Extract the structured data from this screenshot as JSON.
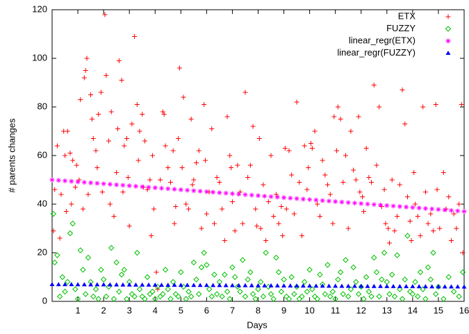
{
  "chart_data": {
    "type": "scatter",
    "x_label": "Days",
    "y_label": "# parents changes",
    "xlim": [
      0,
      16
    ],
    "ylim": [
      0,
      120
    ],
    "xticks": [
      1,
      2,
      3,
      4,
      5,
      6,
      7,
      8,
      9,
      10,
      11,
      12,
      13,
      14,
      15,
      16
    ],
    "yticks": [
      0,
      20,
      40,
      60,
      80,
      100,
      120
    ],
    "legend": "top-right",
    "series": [
      {
        "name": "ETX",
        "color": "#ff0000",
        "marker": "plus",
        "x": [
          0.05,
          0.1,
          0.2,
          0.3,
          0.35,
          0.45,
          0.5,
          0.55,
          0.6,
          0.7,
          0.75,
          0.8,
          0.9,
          0.95,
          1.05,
          1.1,
          1.2,
          1.25,
          1.3,
          1.35,
          1.4,
          1.5,
          1.55,
          1.6,
          1.7,
          1.75,
          1.8,
          1.9,
          1.95,
          2.05,
          2.1,
          2.2,
          2.25,
          2.3,
          2.4,
          2.5,
          2.55,
          2.6,
          2.7,
          2.75,
          2.8,
          2.9,
          2.95,
          3.0,
          3.1,
          3.2,
          3.3,
          3.35,
          3.4,
          3.5,
          3.55,
          3.6,
          3.7,
          3.8,
          3.85,
          3.9,
          3.95,
          4.05,
          4.1,
          4.2,
          4.3,
          4.35,
          4.4,
          4.5,
          4.6,
          4.7,
          4.75,
          4.8,
          4.9,
          4.95,
          5.05,
          5.1,
          5.2,
          5.3,
          5.4,
          5.45,
          5.5,
          5.6,
          5.7,
          5.8,
          5.9,
          5.95,
          6.0,
          6.1,
          6.2,
          6.3,
          6.4,
          6.5,
          6.6,
          6.7,
          6.8,
          6.9,
          6.95,
          7.0,
          7.1,
          7.2,
          7.3,
          7.4,
          7.5,
          7.6,
          7.7,
          7.8,
          7.9,
          7.95,
          8.05,
          8.1,
          8.2,
          8.3,
          8.4,
          8.5,
          8.6,
          8.7,
          8.8,
          8.9,
          8.95,
          9.05,
          9.1,
          9.2,
          9.3,
          9.4,
          9.5,
          9.6,
          9.7,
          9.8,
          9.9,
          9.95,
          10.05,
          10.1,
          10.2,
          10.3,
          10.4,
          10.5,
          10.6,
          10.7,
          10.8,
          10.9,
          10.95,
          11.05,
          11.1,
          11.2,
          11.3,
          11.4,
          11.5,
          11.6,
          11.7,
          11.8,
          11.9,
          11.95,
          12.05,
          12.1,
          12.2,
          12.3,
          12.4,
          12.5,
          12.6,
          12.7,
          12.8,
          12.9,
          12.95,
          13.05,
          13.1,
          13.2,
          13.3,
          13.4,
          13.5,
          13.6,
          13.7,
          13.8,
          13.9,
          13.95,
          14.05,
          14.1,
          14.2,
          14.3,
          14.4,
          14.5,
          14.6,
          14.7,
          14.8,
          14.9,
          14.95,
          15.05,
          15.2,
          15.3,
          15.4,
          15.5,
          15.6,
          15.7,
          15.8,
          15.9,
          15.95
        ],
        "values": [
          29,
          46,
          64,
          26,
          44,
          70,
          60,
          37,
          70,
          61,
          40,
          58,
          47,
          56,
          50,
          83,
          38,
          92,
          95,
          100,
          44,
          85,
          75,
          67,
          62,
          55,
          77,
          86,
          45,
          118,
          93,
          66,
          40,
          78,
          35,
          53,
          71,
          99,
          91,
          45,
          64,
          67,
          51,
          31,
          73,
          109,
          81,
          58,
          70,
          77,
          47,
          66,
          46,
          50,
          27,
          60,
          38,
          12,
          5,
          50,
          78,
          77,
          64,
          55,
          49,
          62,
          32,
          39,
          67,
          96,
          55,
          84,
          40,
          38,
          75,
          48,
          50,
          57,
          62,
          30,
          81,
          58,
          36,
          45,
          71,
          32,
          51,
          49,
          38,
          25,
          76,
          60,
          55,
          41,
          29,
          56,
          45,
          32,
          86,
          51,
          56,
          72,
          38,
          31,
          67,
          30,
          48,
          25,
          41,
          60,
          35,
          44,
          32,
          39,
          27,
          63,
          38,
          62,
          52,
          36,
          82,
          49,
          27,
          64,
          46,
          55,
          65,
          63,
          70,
          40,
          35,
          58,
          52,
          48,
          44,
          32,
          76,
          62,
          80,
          75,
          49,
          60,
          30,
          70,
          54,
          50,
          76,
          45,
          43,
          37,
          63,
          51,
          49,
          89,
          56,
          80,
          39,
          46,
          32,
          30,
          24,
          50,
          29,
          35,
          48,
          87,
          73,
          43,
          33,
          25,
          53,
          40,
          35,
          27,
          80,
          45,
          32,
          36,
          29,
          81,
          46,
          30,
          53,
          38,
          43,
          25,
          36,
          30,
          40,
          81,
          20
        ]
      },
      {
        "name": "FUZZY",
        "color": "#00c000",
        "marker": "diamond",
        "x": [
          0.05,
          0.1,
          0.2,
          0.3,
          0.4,
          0.5,
          0.6,
          0.7,
          0.8,
          0.9,
          1.0,
          1.1,
          1.2,
          1.3,
          1.4,
          1.5,
          1.6,
          1.7,
          1.8,
          1.9,
          2.0,
          2.1,
          2.2,
          2.3,
          2.4,
          2.5,
          2.6,
          2.7,
          2.8,
          2.9,
          3.0,
          3.1,
          3.2,
          3.3,
          3.4,
          3.5,
          3.6,
          3.7,
          3.8,
          3.9,
          4.0,
          4.1,
          4.2,
          4.3,
          4.4,
          4.5,
          4.6,
          4.7,
          4.8,
          4.9,
          5.0,
          5.1,
          5.2,
          5.3,
          5.4,
          5.5,
          5.6,
          5.7,
          5.8,
          5.9,
          6.0,
          6.1,
          6.2,
          6.3,
          6.4,
          6.5,
          6.6,
          6.7,
          6.8,
          6.9,
          7.0,
          7.1,
          7.2,
          7.3,
          7.4,
          7.5,
          7.6,
          7.7,
          7.8,
          7.9,
          8.0,
          8.1,
          8.2,
          8.3,
          8.4,
          8.5,
          8.6,
          8.7,
          8.8,
          8.9,
          9.0,
          9.1,
          9.2,
          9.3,
          9.4,
          9.5,
          9.6,
          9.7,
          9.8,
          9.9,
          10.0,
          10.1,
          10.2,
          10.3,
          10.4,
          10.5,
          10.6,
          10.7,
          10.8,
          10.9,
          11.0,
          11.1,
          11.2,
          11.3,
          11.4,
          11.5,
          11.6,
          11.7,
          11.8,
          11.9,
          12.0,
          12.1,
          12.2,
          12.3,
          12.4,
          12.5,
          12.6,
          12.7,
          12.8,
          12.9,
          13.0,
          13.1,
          13.2,
          13.3,
          13.4,
          13.5,
          13.6,
          13.7,
          13.8,
          13.9,
          14.0,
          14.1,
          14.2,
          14.3,
          14.4,
          14.5,
          14.6,
          14.7,
          14.8,
          14.9,
          15.0,
          15.2,
          15.4,
          15.6,
          15.8,
          15.95
        ],
        "values": [
          36,
          16,
          19,
          2,
          10,
          4,
          8,
          28,
          32,
          5,
          1,
          21,
          13,
          3,
          18,
          8,
          2,
          5,
          1,
          13,
          9,
          2,
          6,
          22,
          1,
          16,
          4,
          11,
          13,
          1,
          8,
          3,
          2,
          20,
          5,
          2,
          1,
          10,
          3,
          4,
          1,
          6,
          2,
          3,
          13,
          5,
          1,
          8,
          3,
          2,
          12,
          6,
          1,
          4,
          2,
          16,
          9,
          3,
          14,
          20,
          15,
          5,
          2,
          11,
          3,
          8,
          2,
          11,
          4,
          1,
          14,
          10,
          6,
          4,
          17,
          2,
          9,
          12,
          3,
          1,
          5,
          8,
          2,
          20,
          6,
          3,
          1,
          18,
          12,
          4,
          9,
          2,
          1,
          10,
          3,
          6,
          1,
          2,
          8,
          4,
          13,
          5,
          2,
          1,
          11,
          7,
          3,
          15,
          2,
          4,
          1,
          9,
          12,
          3,
          17,
          2,
          5,
          14,
          8,
          3,
          6,
          1,
          10,
          4,
          2,
          18,
          12,
          2,
          9,
          20,
          8,
          3,
          11,
          2,
          19,
          5,
          1,
          9,
          27,
          4,
          3,
          8,
          2,
          12,
          5,
          1,
          14,
          9,
          20,
          3,
          6,
          1,
          10,
          4,
          2,
          12
        ]
      },
      {
        "name": "linear_regr(ETX)",
        "color": "#ff00ff",
        "marker": "asterisk",
        "x": [
          0,
          0.25,
          0.5,
          0.75,
          1,
          1.25,
          1.5,
          1.75,
          2,
          2.25,
          2.5,
          2.75,
          3,
          3.25,
          3.5,
          3.75,
          4,
          4.25,
          4.5,
          4.75,
          5,
          5.25,
          5.5,
          5.75,
          6,
          6.25,
          6.5,
          6.75,
          7,
          7.25,
          7.5,
          7.75,
          8,
          8.25,
          8.5,
          8.75,
          9,
          9.25,
          9.5,
          9.75,
          10,
          10.25,
          10.5,
          10.75,
          11,
          11.25,
          11.5,
          11.75,
          12,
          12.25,
          12.5,
          12.75,
          13,
          13.25,
          13.5,
          13.75,
          14,
          14.25,
          14.5,
          14.75,
          15,
          15.25,
          15.5,
          15.75,
          16
        ],
        "values": [
          50,
          49.8,
          49.59,
          49.39,
          49.19,
          48.98,
          48.78,
          48.58,
          48.38,
          48.17,
          47.97,
          47.77,
          47.56,
          47.36,
          47.16,
          46.95,
          46.75,
          46.55,
          46.34,
          46.14,
          45.94,
          45.73,
          45.53,
          45.33,
          45.13,
          44.92,
          44.72,
          44.52,
          44.31,
          44.11,
          43.91,
          43.7,
          43.5,
          43.3,
          43.09,
          42.89,
          42.69,
          42.48,
          42.28,
          42.08,
          41.88,
          41.67,
          41.47,
          41.27,
          41.06,
          40.86,
          40.66,
          40.45,
          40.25,
          40.05,
          39.84,
          39.64,
          39.44,
          39.23,
          39.03,
          38.83,
          38.63,
          38.42,
          38.22,
          38.02,
          37.81,
          37.61,
          37.41,
          37.2,
          37
        ]
      },
      {
        "name": "linear_regr(FUZZY)",
        "color": "#0000ff",
        "marker": "triangle",
        "x": [
          0,
          0.25,
          0.5,
          0.75,
          1,
          1.25,
          1.5,
          1.75,
          2,
          2.25,
          2.5,
          2.75,
          3,
          3.25,
          3.5,
          3.75,
          4,
          4.25,
          4.5,
          4.75,
          5,
          5.25,
          5.5,
          5.75,
          6,
          6.25,
          6.5,
          6.75,
          7,
          7.25,
          7.5,
          7.75,
          8,
          8.25,
          8.5,
          8.75,
          9,
          9.25,
          9.5,
          9.75,
          10,
          10.25,
          10.5,
          10.75,
          11,
          11.25,
          11.5,
          11.75,
          12,
          12.25,
          12.5,
          12.75,
          13,
          13.25,
          13.5,
          13.75,
          14,
          14.25,
          14.5,
          14.75,
          15,
          15.25,
          15.5,
          15.75,
          16
        ],
        "values": [
          7,
          6.98,
          6.97,
          6.95,
          6.94,
          6.92,
          6.91,
          6.89,
          6.88,
          6.86,
          6.84,
          6.83,
          6.81,
          6.8,
          6.78,
          6.77,
          6.75,
          6.73,
          6.72,
          6.7,
          6.69,
          6.67,
          6.66,
          6.64,
          6.63,
          6.61,
          6.59,
          6.58,
          6.56,
          6.55,
          6.53,
          6.52,
          6.5,
          6.48,
          6.47,
          6.45,
          6.44,
          6.42,
          6.41,
          6.39,
          6.38,
          6.36,
          6.34,
          6.33,
          6.31,
          6.3,
          6.28,
          6.27,
          6.25,
          6.23,
          6.22,
          6.2,
          6.19,
          6.17,
          6.16,
          6.14,
          6.13,
          6.11,
          6.09,
          6.08,
          6.06,
          6.05,
          6.03,
          6.02,
          6
        ]
      }
    ]
  }
}
